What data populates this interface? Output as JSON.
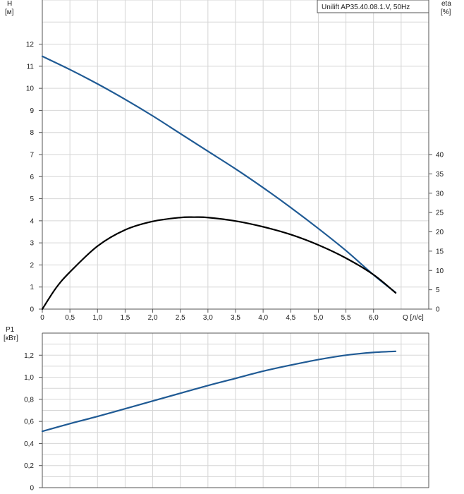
{
  "title": "Unilift AP35.40.08.1.V, 50Hz",
  "colors": {
    "head_curve": "#1f5a94",
    "eta_curve": "#000000",
    "power_curve": "#1f5a94",
    "grid": "#d6d6d6",
    "axis": "#555555"
  },
  "chart_data": [
    {
      "type": "line",
      "title": "Unilift AP35.40.08.1.V, 50Hz",
      "legend_position": "top-right",
      "xlabel": "Q [л/с]",
      "x_ticks": [
        "0",
        "0,5",
        "1,0",
        "1,5",
        "2,0",
        "2,5",
        "3,0",
        "3,5",
        "4,0",
        "4,5",
        "5,0",
        "5,5",
        "6,0"
      ],
      "xlim": [
        0,
        7
      ],
      "grid": true,
      "y_left": {
        "label": "H",
        "unit": "[м]",
        "ylim": [
          0,
          14
        ],
        "ticks": [
          "0",
          "1",
          "2",
          "3",
          "4",
          "5",
          "6",
          "7",
          "8",
          "9",
          "10",
          "11",
          "12"
        ]
      },
      "y_right": {
        "label": "eta",
        "unit": "[%]",
        "ylim": [
          0,
          80
        ],
        "ticks": [
          "0",
          "5",
          "10",
          "15",
          "20",
          "25",
          "30",
          "35",
          "40"
        ]
      },
      "series": [
        {
          "key": "H",
          "axis": "left",
          "x": [
            0,
            0.5,
            1.0,
            1.5,
            2.0,
            2.5,
            3.0,
            3.5,
            4.0,
            4.5,
            5.0,
            5.5,
            6.0,
            6.4
          ],
          "values": [
            11.45,
            10.85,
            10.2,
            9.5,
            8.75,
            7.95,
            7.15,
            6.35,
            5.5,
            4.6,
            3.65,
            2.65,
            1.55,
            0.75
          ]
        },
        {
          "key": "eta",
          "axis": "right",
          "x": [
            0,
            0.25,
            0.5,
            1.0,
            1.5,
            2.0,
            2.5,
            2.75,
            3.0,
            3.5,
            4.0,
            4.5,
            5.0,
            5.5,
            6.0,
            6.4
          ],
          "values": [
            0,
            5.5,
            9.6,
            16.3,
            20.5,
            22.7,
            23.7,
            23.8,
            23.7,
            22.8,
            21.3,
            19.3,
            16.6,
            13.2,
            8.9,
            4.2
          ]
        }
      ]
    },
    {
      "type": "line",
      "xlim": [
        0,
        7
      ],
      "grid": true,
      "y_left": {
        "label": "P1",
        "unit": "[кВт]",
        "ylim": [
          0,
          1.4
        ],
        "ticks": [
          "0",
          "0,2",
          "0,4",
          "0,6",
          "0,8",
          "1,0",
          "1,2"
        ]
      },
      "series": [
        {
          "key": "P1",
          "axis": "left",
          "x": [
            0,
            0.5,
            1.0,
            1.5,
            2.0,
            2.5,
            3.0,
            3.5,
            4.0,
            4.5,
            5.0,
            5.5,
            6.0,
            6.4
          ],
          "values": [
            0.51,
            0.58,
            0.645,
            0.715,
            0.785,
            0.855,
            0.925,
            0.99,
            1.055,
            1.11,
            1.16,
            1.2,
            1.225,
            1.235
          ]
        }
      ]
    }
  ]
}
